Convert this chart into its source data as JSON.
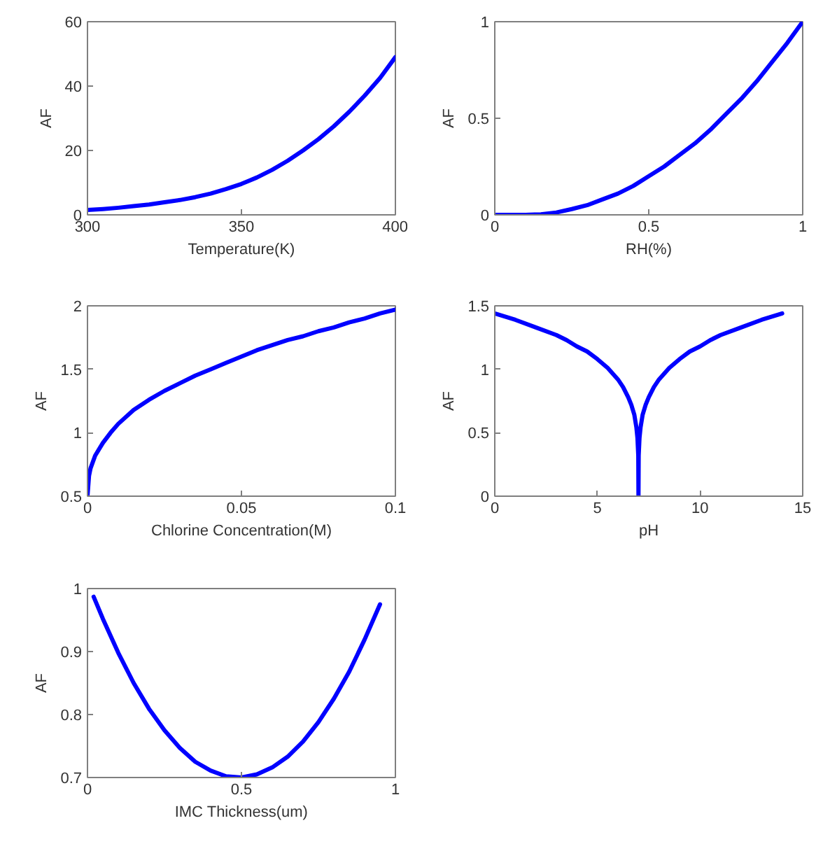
{
  "chart_data": [
    {
      "type": "line",
      "xlabel": "Temperature(K)",
      "ylabel": "AF",
      "x": [
        300,
        305,
        310,
        315,
        320,
        325,
        330,
        335,
        340,
        345,
        350,
        355,
        360,
        365,
        370,
        375,
        380,
        385,
        390,
        395,
        400
      ],
      "series": [
        {
          "color": "#0000ff",
          "values": [
            1.5,
            1.8,
            2.2,
            2.7,
            3.2,
            3.9,
            4.6,
            5.5,
            6.6,
            8,
            9.6,
            11.6,
            14,
            16.8,
            20,
            23.5,
            27.5,
            32,
            37,
            42.5,
            49
          ]
        }
      ],
      "xlim": [
        300,
        400
      ],
      "ylim": [
        0,
        60
      ],
      "xticks": [
        300,
        350,
        400
      ],
      "yticks": [
        0,
        20,
        40,
        60
      ]
    },
    {
      "type": "line",
      "xlabel": "RH(%)",
      "ylabel": "AF",
      "x": [
        0,
        0.1,
        0.15,
        0.2,
        0.25,
        0.3,
        0.35,
        0.4,
        0.45,
        0.5,
        0.55,
        0.6,
        0.65,
        0.7,
        0.75,
        0.8,
        0.85,
        0.9,
        0.95,
        1
      ],
      "series": [
        {
          "color": "#0000ff",
          "values": [
            0,
            0,
            0.003,
            0.012,
            0.03,
            0.05,
            0.08,
            0.11,
            0.15,
            0.2,
            0.25,
            0.31,
            0.37,
            0.44,
            0.52,
            0.6,
            0.69,
            0.79,
            0.89,
            1
          ]
        }
      ],
      "xlim": [
        0,
        1
      ],
      "ylim": [
        0,
        1
      ],
      "xticks": [
        0,
        0.5,
        1
      ],
      "yticks": [
        0,
        0.5,
        1
      ]
    },
    {
      "type": "line",
      "xlabel": "Chlorine Concentration(M)",
      "ylabel": "AF",
      "x": [
        0,
        0.0005,
        0.001,
        0.0025,
        0.005,
        0.0075,
        0.01,
        0.015,
        0.02,
        0.025,
        0.03,
        0.035,
        0.04,
        0.045,
        0.05,
        0.055,
        0.06,
        0.065,
        0.07,
        0.075,
        0.08,
        0.085,
        0.09,
        0.095,
        0.1
      ],
      "series": [
        {
          "color": "#0000ff",
          "values": [
            0.5,
            0.66,
            0.72,
            0.82,
            0.92,
            1.0,
            1.07,
            1.18,
            1.26,
            1.33,
            1.39,
            1.45,
            1.5,
            1.55,
            1.6,
            1.65,
            1.69,
            1.73,
            1.76,
            1.8,
            1.83,
            1.87,
            1.9,
            1.94,
            1.97
          ]
        }
      ],
      "xlim": [
        0,
        0.1
      ],
      "ylim": [
        0.5,
        2
      ],
      "xticks": [
        0,
        0.05,
        0.1
      ],
      "yticks": [
        0.5,
        1,
        1.5,
        2
      ]
    },
    {
      "type": "line",
      "xlabel": "pH",
      "ylabel": "AF",
      "x": [
        0,
        1,
        2,
        3,
        3.5,
        4,
        4.5,
        5,
        5.5,
        6,
        6.25,
        6.5,
        6.65,
        6.8,
        6.9,
        6.95,
        6.99,
        7,
        7.01,
        7.05,
        7.1,
        7.2,
        7.35,
        7.5,
        7.75,
        8,
        8.5,
        9,
        9.5,
        10,
        10.5,
        11,
        12,
        13,
        14
      ],
      "series": [
        {
          "color": "#0000ff",
          "values": [
            1.44,
            1.39,
            1.33,
            1.27,
            1.23,
            1.18,
            1.14,
            1.08,
            1.01,
            0.92,
            0.86,
            0.78,
            0.72,
            0.64,
            0.54,
            0.46,
            0.32,
            0,
            0.32,
            0.46,
            0.54,
            0.64,
            0.72,
            0.78,
            0.86,
            0.92,
            1.01,
            1.08,
            1.14,
            1.18,
            1.23,
            1.27,
            1.33,
            1.39,
            1.44
          ]
        }
      ],
      "xlim": [
        0,
        15
      ],
      "ylim": [
        0,
        1.5
      ],
      "xticks": [
        0,
        5,
        10,
        15
      ],
      "yticks": [
        0,
        0.5,
        1,
        1.5
      ]
    },
    {
      "type": "line",
      "xlabel": "IMC Thickness(um)",
      "ylabel": "AF",
      "x": [
        0.02,
        0.05,
        0.1,
        0.15,
        0.2,
        0.25,
        0.3,
        0.35,
        0.4,
        0.45,
        0.5,
        0.55,
        0.6,
        0.65,
        0.7,
        0.75,
        0.8,
        0.85,
        0.9,
        0.95
      ],
      "series": [
        {
          "color": "#0000ff",
          "values": [
            0.987,
            0.952,
            0.898,
            0.85,
            0.809,
            0.775,
            0.747,
            0.725,
            0.711,
            0.702,
            0.7,
            0.705,
            0.716,
            0.733,
            0.757,
            0.788,
            0.825,
            0.868,
            0.919,
            0.975
          ]
        }
      ],
      "xlim": [
        0,
        1
      ],
      "ylim": [
        0.7,
        1
      ],
      "xticks": [
        0,
        0.5,
        1
      ],
      "yticks": [
        0.7,
        0.8,
        0.9,
        1
      ]
    }
  ]
}
